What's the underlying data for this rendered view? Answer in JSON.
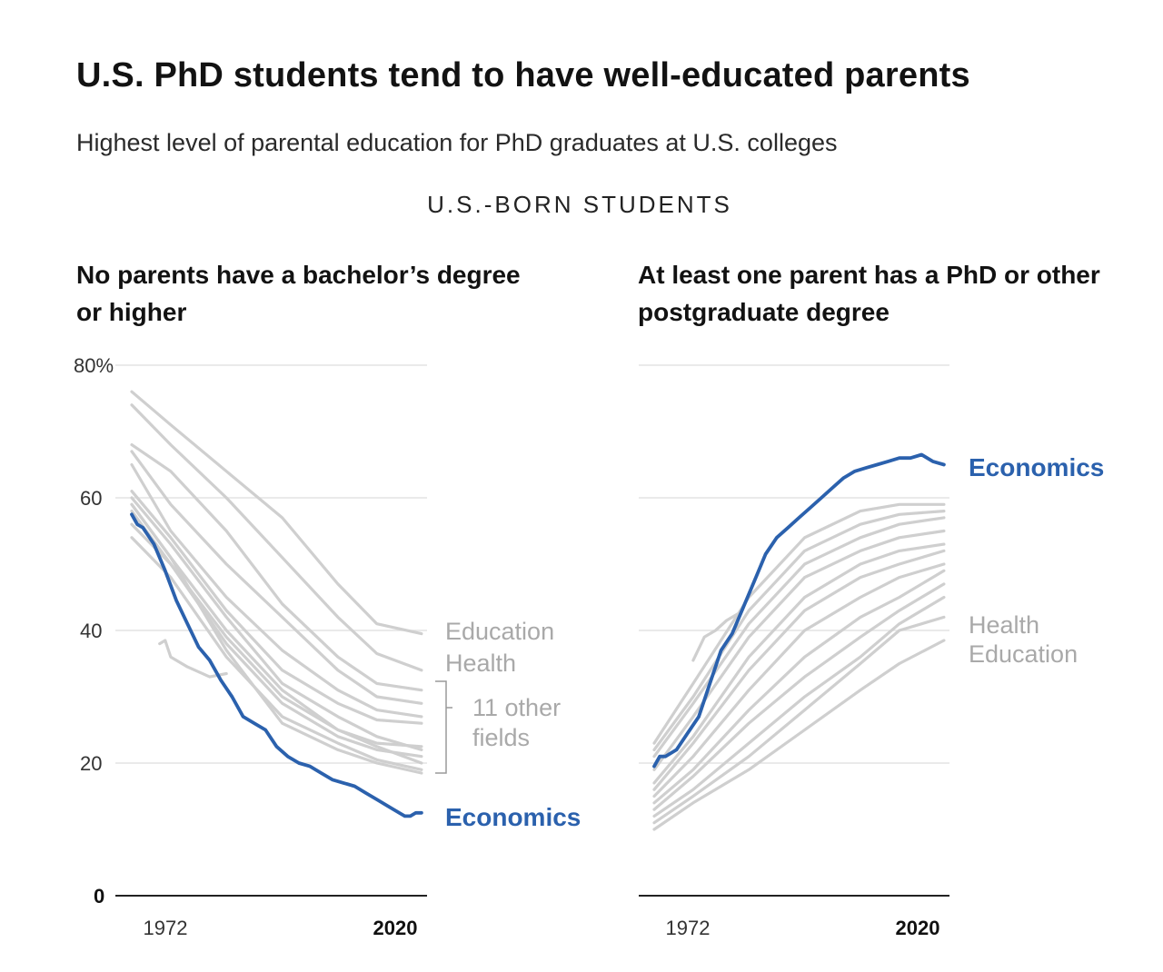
{
  "header": {
    "title": "U.S. PhD students tend to have well-educated parents",
    "subtitle": "Highest level of parental education for PhD graduates at U.S. colleges",
    "section_label": "U.S.-BORN STUDENTS"
  },
  "colors": {
    "highlight": "#2b61ad",
    "other": "#cfcfcf",
    "grid": "#e4e4e4",
    "axis": "#222222"
  },
  "chart_data": [
    {
      "type": "line",
      "title": "No parents have a bachelor’s degree or higher",
      "x_ticks": [
        {
          "label": "1972",
          "bold": false
        },
        {
          "label": "2020",
          "bold": true
        }
      ],
      "y_ticks": [
        "0",
        "20",
        "40",
        "60",
        "80%"
      ],
      "ylim": [
        0,
        80
      ],
      "xlim": [
        1968,
        2021
      ],
      "grid": true,
      "labels": {
        "education": "Education",
        "health": "Health",
        "others": "11 other fields",
        "others_line1": "11 other",
        "others_line2": "fields",
        "economics": "Economics"
      },
      "highlight": {
        "name": "Economics",
        "points": [
          [
            1968,
            57.5
          ],
          [
            1969,
            56
          ],
          [
            1970,
            55.5
          ],
          [
            1972,
            53
          ],
          [
            1974,
            49
          ],
          [
            1976,
            44.5
          ],
          [
            1978,
            41
          ],
          [
            1980,
            37.5
          ],
          [
            1982,
            35.5
          ],
          [
            1984,
            32.5
          ],
          [
            1986,
            30
          ],
          [
            1988,
            27
          ],
          [
            1990,
            26
          ],
          [
            1992,
            25
          ],
          [
            1994,
            22.5
          ],
          [
            1996,
            21
          ],
          [
            1998,
            20
          ],
          [
            2000,
            19.5
          ],
          [
            2002,
            18.5
          ],
          [
            2004,
            17.5
          ],
          [
            2006,
            17
          ],
          [
            2008,
            16.5
          ],
          [
            2010,
            15.5
          ],
          [
            2012,
            14.5
          ],
          [
            2014,
            13.5
          ],
          [
            2016,
            12.5
          ],
          [
            2017,
            12
          ],
          [
            2018,
            12
          ],
          [
            2019,
            12.5
          ],
          [
            2020,
            12.5
          ]
        ]
      },
      "others": [
        {
          "name": "Education",
          "points": [
            [
              1968,
              76
            ],
            [
              1975,
              71
            ],
            [
              1985,
              64
            ],
            [
              1995,
              57
            ],
            [
              2005,
              47
            ],
            [
              2012,
              41
            ],
            [
              2020,
              39.5
            ]
          ]
        },
        {
          "name": "Health",
          "points": [
            [
              1968,
              74
            ],
            [
              1975,
              68
            ],
            [
              1985,
              60
            ],
            [
              1995,
              51
            ],
            [
              2005,
              42
            ],
            [
              2012,
              36.5
            ],
            [
              2020,
              34
            ]
          ]
        },
        {
          "points": [
            [
              1968,
              68
            ],
            [
              1975,
              64
            ],
            [
              1985,
              55
            ],
            [
              1995,
              44
            ],
            [
              2005,
              36
            ],
            [
              2012,
              32
            ],
            [
              2020,
              31
            ]
          ]
        },
        {
          "points": [
            [
              1968,
              67
            ],
            [
              1975,
              59
            ],
            [
              1985,
              50
            ],
            [
              1995,
              42
            ],
            [
              2005,
              34
            ],
            [
              2012,
              30
            ],
            [
              2020,
              29
            ]
          ]
        },
        {
          "points": [
            [
              1968,
              65
            ],
            [
              1975,
              55
            ],
            [
              1985,
              45
            ],
            [
              1995,
              37
            ],
            [
              2005,
              31
            ],
            [
              2012,
              28
            ],
            [
              2020,
              27
            ]
          ]
        },
        {
          "points": [
            [
              1968,
              61
            ],
            [
              1975,
              54
            ],
            [
              1985,
              43
            ],
            [
              1995,
              34
            ],
            [
              2005,
              29
            ],
            [
              2012,
              26.5
            ],
            [
              2020,
              26
            ]
          ]
        },
        {
          "points": [
            [
              1968,
              60
            ],
            [
              1975,
              53
            ],
            [
              1985,
              42
            ],
            [
              1995,
              32
            ],
            [
              2005,
              27
            ],
            [
              2012,
              24
            ],
            [
              2020,
              22
            ]
          ]
        },
        {
          "points": [
            [
              1968,
              59
            ],
            [
              1975,
              51
            ],
            [
              1985,
              40
            ],
            [
              1995,
              31
            ],
            [
              2005,
              25
            ],
            [
              2012,
              23
            ],
            [
              2020,
              22.5
            ]
          ]
        },
        {
          "points": [
            [
              1968,
              58
            ],
            [
              1975,
              50
            ],
            [
              1985,
              38
            ],
            [
              1995,
              29
            ],
            [
              2005,
              24
            ],
            [
              2012,
              22
            ],
            [
              2020,
              21
            ]
          ]
        },
        {
          "points": [
            [
              1968,
              56
            ],
            [
              1975,
              50
            ],
            [
              1985,
              39
            ],
            [
              1995,
              30
            ],
            [
              2005,
              25
            ],
            [
              2012,
              22.5
            ],
            [
              2020,
              20
            ]
          ]
        },
        {
          "points": [
            [
              1968,
              54
            ],
            [
              1975,
              48
            ],
            [
              1985,
              36
            ],
            [
              1995,
              27
            ],
            [
              2005,
              23
            ],
            [
              2012,
              20.5
            ],
            [
              2020,
              19
            ]
          ]
        },
        {
          "points": [
            [
              1968,
              59
            ],
            [
              1975,
              51
            ],
            [
              1985,
              37
            ],
            [
              1995,
              26
            ],
            [
              2005,
              22
            ],
            [
              2012,
              20
            ],
            [
              2020,
              18.5
            ]
          ]
        },
        {
          "points": [
            [
              1973,
              38
            ],
            [
              1974,
              38.5
            ],
            [
              1975,
              36
            ],
            [
              1978,
              34.5
            ],
            [
              1982,
              33
            ],
            [
              1985,
              33.5
            ]
          ]
        }
      ]
    },
    {
      "type": "line",
      "title": "At least one parent has a PhD or other postgraduate degree",
      "x_ticks": [
        {
          "label": "1972",
          "bold": false
        },
        {
          "label": "2020",
          "bold": true
        }
      ],
      "y_ticks": [
        "0",
        "20",
        "40",
        "60",
        "80%"
      ],
      "ylim": [
        0,
        80
      ],
      "xlim": [
        1968,
        2021
      ],
      "grid": true,
      "labels": {
        "health": "Health",
        "education": "Education",
        "economics": "Economics"
      },
      "highlight": {
        "name": "Economics",
        "points": [
          [
            1968,
            19.5
          ],
          [
            1969,
            21
          ],
          [
            1970,
            21
          ],
          [
            1972,
            22
          ],
          [
            1974,
            24.5
          ],
          [
            1976,
            27
          ],
          [
            1978,
            32
          ],
          [
            1980,
            37
          ],
          [
            1982,
            39.5
          ],
          [
            1984,
            43.5
          ],
          [
            1986,
            47.5
          ],
          [
            1988,
            51.5
          ],
          [
            1990,
            54
          ],
          [
            1992,
            55.5
          ],
          [
            1994,
            57
          ],
          [
            1996,
            58.5
          ],
          [
            1998,
            60
          ],
          [
            2000,
            61.5
          ],
          [
            2002,
            63
          ],
          [
            2004,
            64
          ],
          [
            2006,
            64.5
          ],
          [
            2008,
            65
          ],
          [
            2010,
            65.5
          ],
          [
            2012,
            66
          ],
          [
            2014,
            66
          ],
          [
            2016,
            66.5
          ],
          [
            2018,
            65.5
          ],
          [
            2020,
            65
          ]
        ]
      },
      "others": [
        {
          "points": [
            [
              1968,
              23
            ],
            [
              1975,
              32
            ],
            [
              1985,
              45
            ],
            [
              1995,
              54
            ],
            [
              2005,
              58
            ],
            [
              2012,
              59
            ],
            [
              2020,
              59
            ]
          ]
        },
        {
          "points": [
            [
              1968,
              22
            ],
            [
              1975,
              30
            ],
            [
              1985,
              43
            ],
            [
              1995,
              52
            ],
            [
              2005,
              56
            ],
            [
              2012,
              57.5
            ],
            [
              2020,
              58
            ]
          ]
        },
        {
          "points": [
            [
              1968,
              21
            ],
            [
              1975,
              29
            ],
            [
              1985,
              41
            ],
            [
              1995,
              50
            ],
            [
              2005,
              54
            ],
            [
              2012,
              56
            ],
            [
              2020,
              57
            ]
          ]
        },
        {
          "points": [
            [
              1968,
              19
            ],
            [
              1975,
              27
            ],
            [
              1985,
              39
            ],
            [
              1995,
              48
            ],
            [
              2005,
              52
            ],
            [
              2012,
              54
            ],
            [
              2020,
              55
            ]
          ]
        },
        {
          "points": [
            [
              1968,
              17
            ],
            [
              1975,
              24
            ],
            [
              1985,
              36
            ],
            [
              1995,
              45
            ],
            [
              2005,
              50
            ],
            [
              2012,
              52
            ],
            [
              2020,
              53
            ]
          ]
        },
        {
          "points": [
            [
              1968,
              16
            ],
            [
              1975,
              23
            ],
            [
              1985,
              34
            ],
            [
              1995,
              43
            ],
            [
              2005,
              48
            ],
            [
              2012,
              50
            ],
            [
              2020,
              52
            ]
          ]
        },
        {
          "points": [
            [
              1968,
              15
            ],
            [
              1975,
              21
            ],
            [
              1985,
              31
            ],
            [
              1995,
              40
            ],
            [
              2005,
              45
            ],
            [
              2012,
              48
            ],
            [
              2020,
              50
            ]
          ]
        },
        {
          "points": [
            [
              1968,
              14
            ],
            [
              1975,
              19
            ],
            [
              1985,
              28
            ],
            [
              1995,
              36
            ],
            [
              2005,
              42
            ],
            [
              2012,
              45
            ],
            [
              2020,
              49
            ]
          ]
        },
        {
          "points": [
            [
              1968,
              13
            ],
            [
              1975,
              18
            ],
            [
              1985,
              26
            ],
            [
              1995,
              33
            ],
            [
              2005,
              39
            ],
            [
              2012,
              43
            ],
            [
              2020,
              47
            ]
          ]
        },
        {
          "points": [
            [
              1968,
              12
            ],
            [
              1975,
              16
            ],
            [
              1985,
              23
            ],
            [
              1995,
              30
            ],
            [
              2005,
              36
            ],
            [
              2012,
              41
            ],
            [
              2020,
              45
            ]
          ]
        },
        {
          "name": "Health",
          "points": [
            [
              1968,
              11
            ],
            [
              1975,
              15
            ],
            [
              1985,
              21
            ],
            [
              1995,
              28
            ],
            [
              2005,
              35
            ],
            [
              2012,
              40
            ],
            [
              2020,
              42
            ]
          ]
        },
        {
          "name": "Education",
          "points": [
            [
              1968,
              10
            ],
            [
              1975,
              14
            ],
            [
              1985,
              19
            ],
            [
              1995,
              25
            ],
            [
              2005,
              31
            ],
            [
              2012,
              35
            ],
            [
              2020,
              38.5
            ]
          ]
        },
        {
          "points": [
            [
              1975,
              35.5
            ],
            [
              1977,
              39
            ],
            [
              1979,
              40
            ],
            [
              1981,
              41.5
            ],
            [
              1983,
              42.5
            ]
          ]
        }
      ]
    }
  ]
}
